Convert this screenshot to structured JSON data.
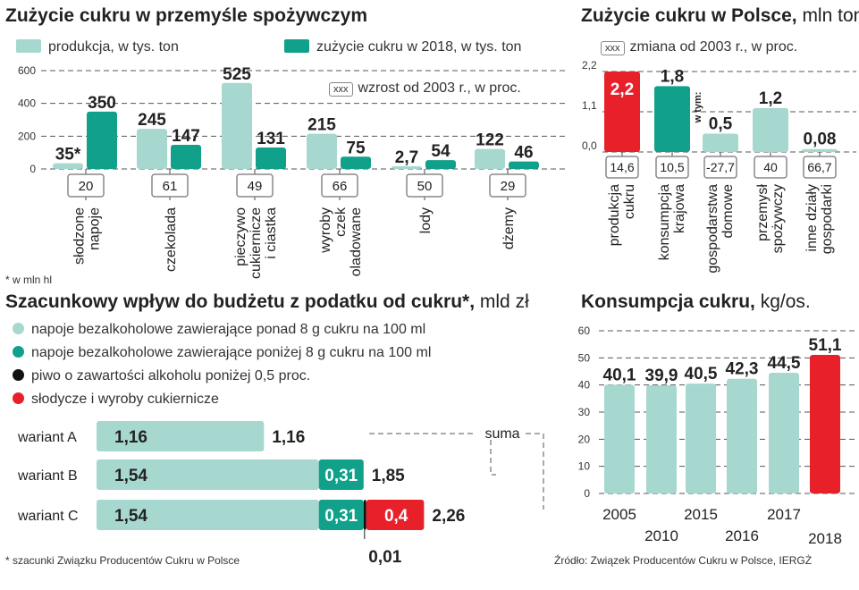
{
  "colors": {
    "light": "#a6d8cf",
    "dark": "#11a08a",
    "red": "#e8202a",
    "black": "#111111",
    "grid": "#555555"
  },
  "chart_data": [
    {
      "type": "bar",
      "title": "Zużycie cukru w przemyśle spożywczym",
      "legend": {
        "production": "produkcja, w tys. ton",
        "usage": "zużycie cukru w 2018, w tys. ton",
        "growth_box": "xxx",
        "growth_label": "wzrost od 2003 r., w proc."
      },
      "categories": [
        "słodzone napoje",
        "czekolada",
        "pieczywo cukiernicze i ciastka",
        "wyroby czekoladowane",
        "lody",
        "dżemy"
      ],
      "category_lines": [
        [
          "słodzone",
          "napoje"
        ],
        [
          "czekolada"
        ],
        [
          "pieczywo",
          "cukiernicze",
          "i ciastka"
        ],
        [
          "wyroby",
          "czek",
          "oladowane"
        ],
        [
          "lody"
        ],
        [
          "dżemy"
        ]
      ],
      "series": [
        {
          "name": "produkcja, w tys. ton",
          "values": [
            35,
            245,
            525,
            215,
            2.7,
            122
          ],
          "labels": [
            "35*",
            "245",
            "525",
            "215",
            "2,7",
            "122"
          ]
        },
        {
          "name": "zużycie cukru w 2018, w tys. ton",
          "values": [
            350,
            147,
            131,
            75,
            54,
            46
          ],
          "labels": [
            "350",
            "147",
            "131",
            "75",
            "54",
            "46"
          ]
        }
      ],
      "growth": [
        "20",
        "61",
        "49",
        "66",
        "50",
        "29"
      ],
      "yticks": [
        "0",
        "200",
        "400",
        "600"
      ],
      "ylim": [
        0,
        600
      ],
      "footnote": "* w mln hl"
    },
    {
      "type": "bar",
      "title": "Zużycie cukru w Polsce,",
      "unit": "mln ton",
      "legend": {
        "box": "xxx",
        "label": "zmiana od 2003 r., w proc."
      },
      "categories": [
        "produkcja cukru",
        "konsumpcja krajowa",
        "gospodarstwa domowe",
        "przemysł spożywczy",
        "inne działy gospodarki"
      ],
      "category_lines": [
        [
          "produkcja",
          "cukru"
        ],
        [
          "konsumpcja",
          "krajowa"
        ],
        [
          "gospodarstwa",
          "domowe"
        ],
        [
          "przemysł",
          "spożywczy"
        ],
        [
          "inne działy",
          "gospodarki"
        ]
      ],
      "values": [
        2.2,
        1.8,
        0.5,
        1.2,
        0.08
      ],
      "labels": [
        "2,2",
        "1,8",
        "0,5",
        "1,2",
        "0,08"
      ],
      "changes": [
        "14,6",
        "10,5",
        "-27,7",
        "40",
        "66,7"
      ],
      "note": "w tym:",
      "yticks": [
        "0,0",
        "1,1",
        "2,2"
      ],
      "ylim": [
        0,
        2.2
      ]
    },
    {
      "type": "bar",
      "title": "Szacunkowy wpływ do budżetu z podatku od cukru*,",
      "unit": "mld zł",
      "legend": [
        "napoje bezalkoholowe zawierające ponad 8 g cukru na 100 ml",
        "napoje bezalkoholowe zawierające poniżej 8 g cukru na 100 ml",
        "piwo o zawartości alkoholu poniżej 0,5 proc.",
        "słodycze i wyroby cukiernicze"
      ],
      "categories": [
        "wariant A",
        "wariant B",
        "wariant C"
      ],
      "series": [
        {
          "name": "napoje ponad 8 g",
          "values": [
            1.16,
            1.54,
            1.54
          ],
          "labels": [
            "1,16",
            "1,54",
            "1,54"
          ]
        },
        {
          "name": "napoje poniżej 8 g",
          "values": [
            0,
            0.31,
            0.31
          ],
          "labels": [
            "",
            "0,31",
            "0,31"
          ]
        },
        {
          "name": "piwo",
          "values": [
            0,
            0,
            0.01
          ],
          "labels": [
            "",
            "",
            "0,01"
          ]
        },
        {
          "name": "słodycze",
          "values": [
            0,
            0,
            0.4
          ],
          "labels": [
            "",
            "",
            "0,4"
          ]
        }
      ],
      "totals": [
        "1,16",
        "1,85",
        "2,26"
      ],
      "sum_label": "suma",
      "footnote": "* szacunki Związku Producentów Cukru w Polsce"
    },
    {
      "type": "bar",
      "title": "Konsumpcja cukru,",
      "unit": "kg/os.",
      "categories": [
        "2005",
        "2010",
        "2015",
        "2016",
        "2017",
        "2018"
      ],
      "values": [
        40.1,
        39.9,
        40.5,
        42.3,
        44.5,
        51.1
      ],
      "labels": [
        "40,1",
        "39,9",
        "40,5",
        "42,3",
        "44,5",
        "51,1"
      ],
      "yticks": [
        "0",
        "10",
        "20",
        "30",
        "40",
        "50",
        "60"
      ],
      "ylim": [
        0,
        60
      ]
    }
  ],
  "source": "Źródło: Związek Producentów Cukru w Polsce, IERGŻ"
}
